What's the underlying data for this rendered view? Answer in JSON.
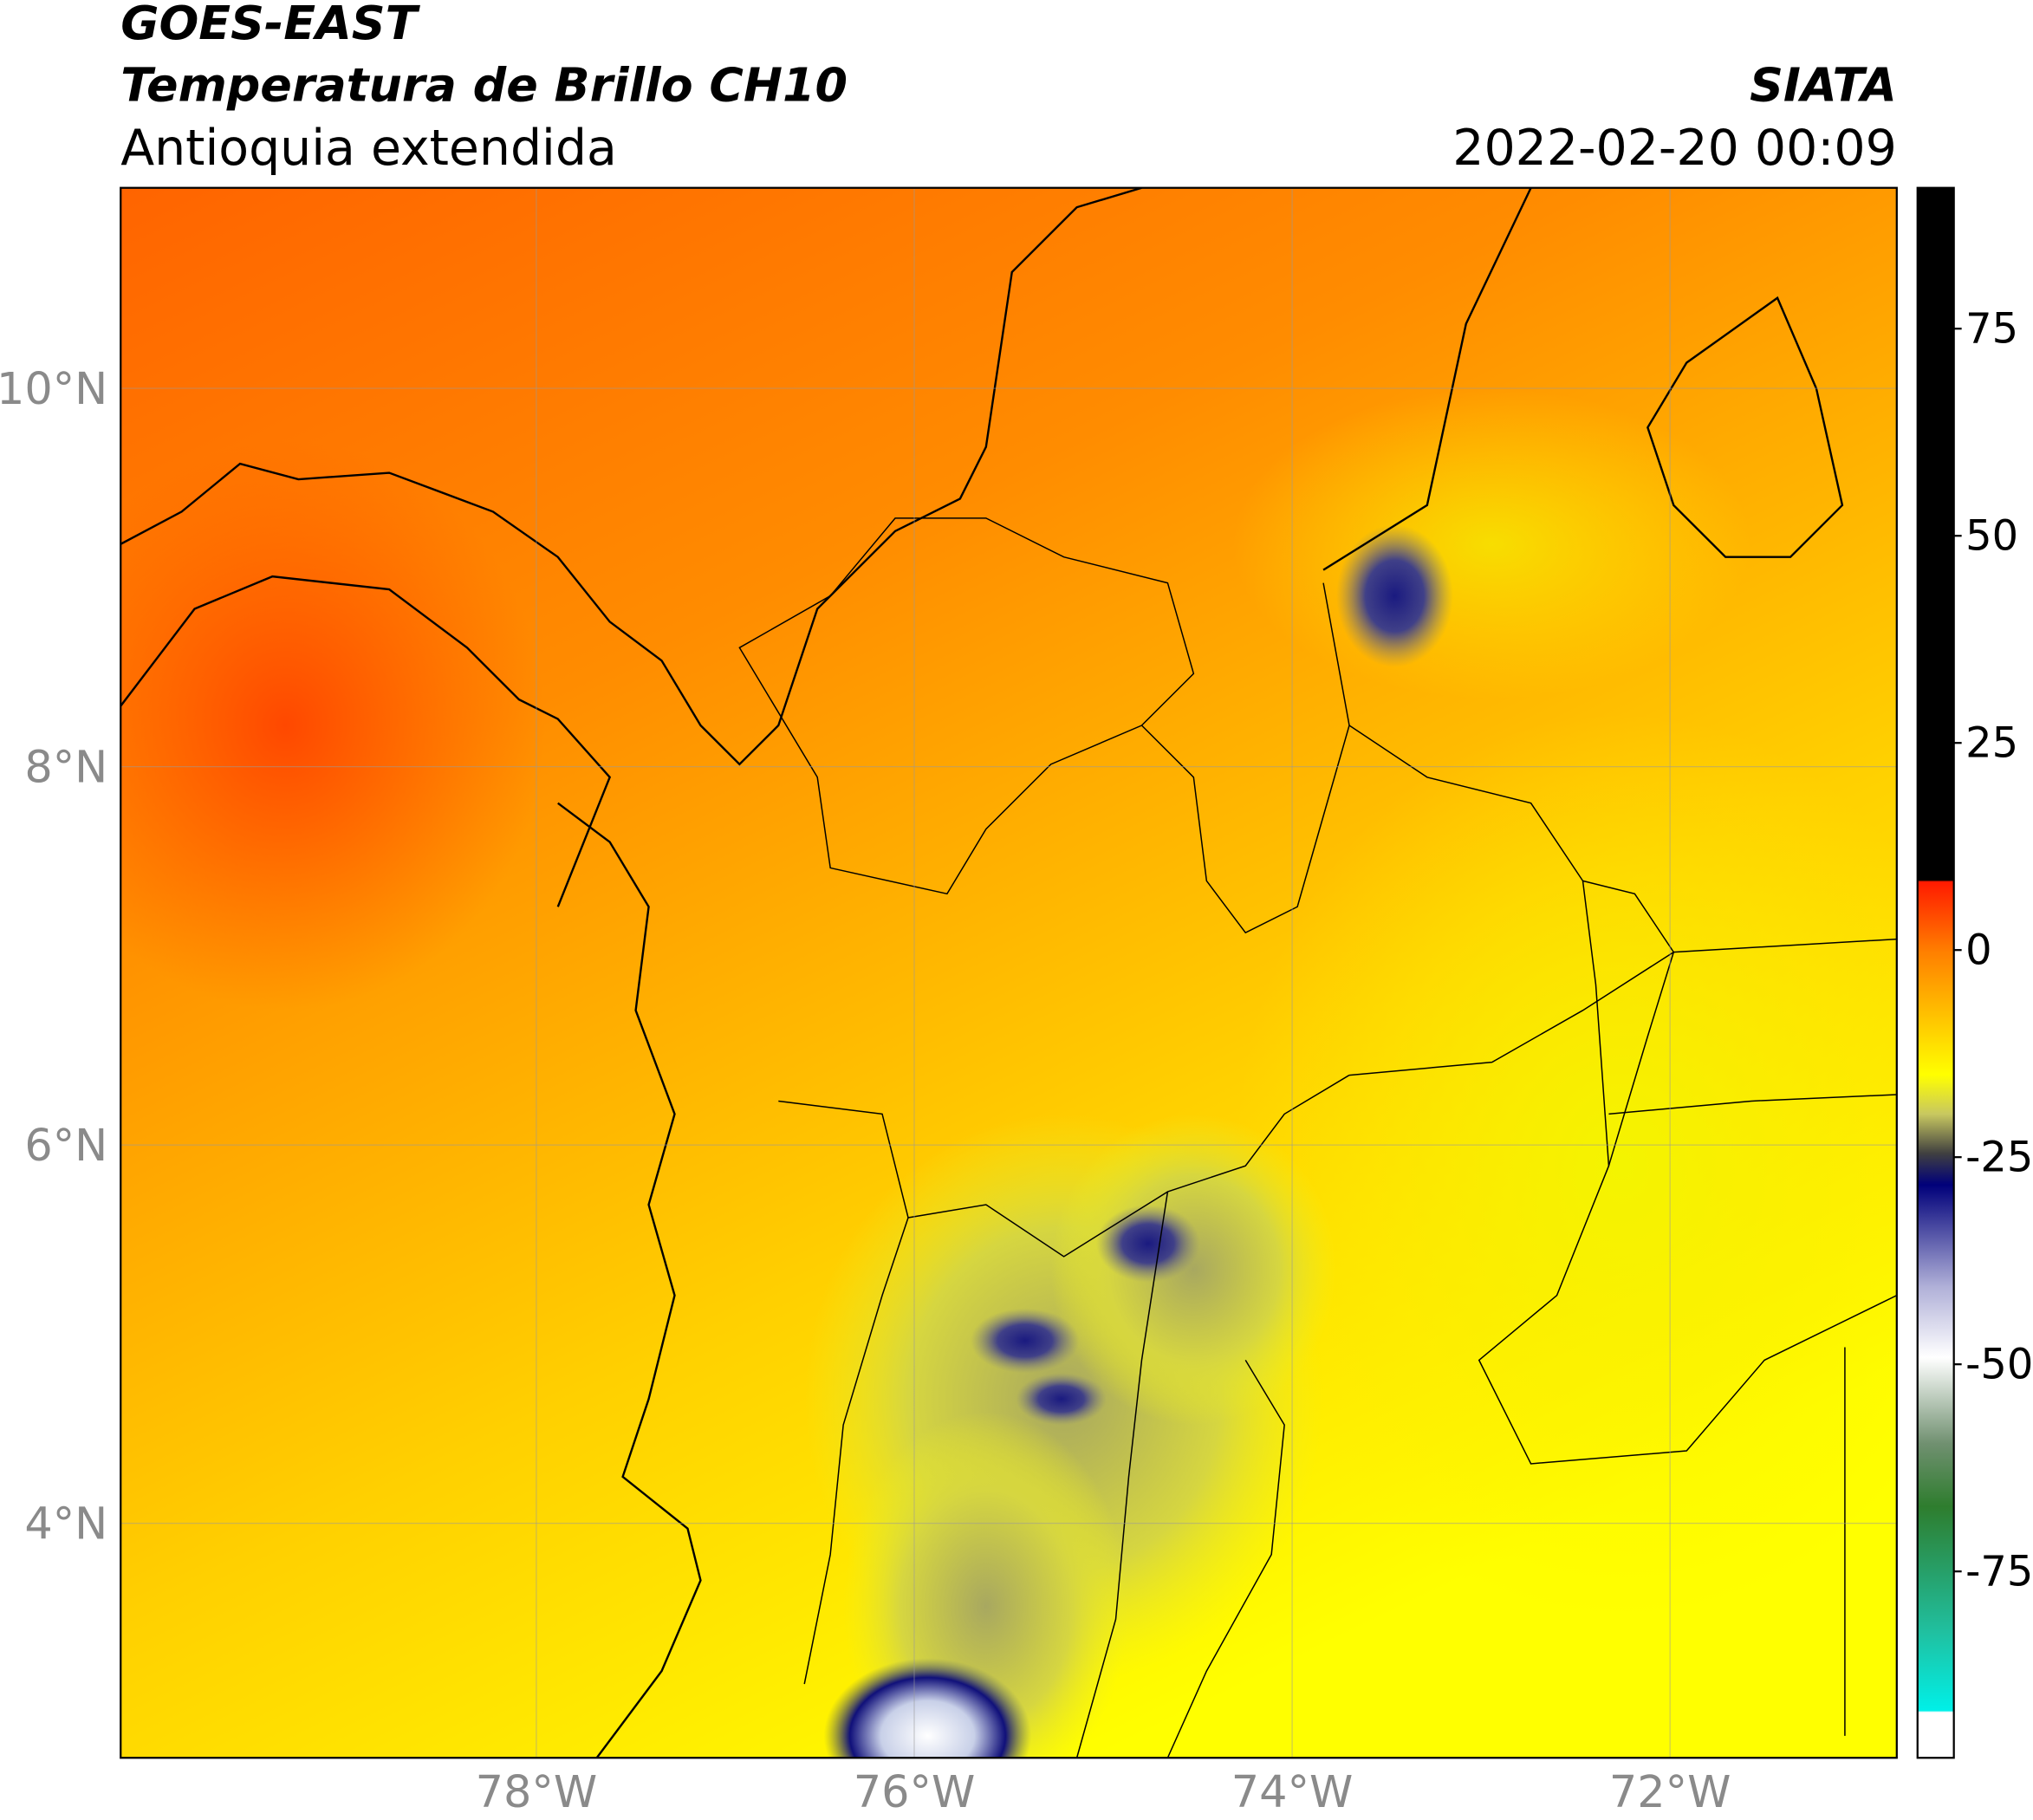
{
  "header": {
    "title_lines": [
      "GOES-EAST",
      "Temperatura de Brillo CH10",
      "Antioquia extendida"
    ],
    "source": "SIATA",
    "datetime": "2022-02-20 00:09"
  },
  "map": {
    "xlim": [
      -80.2,
      -70.8
    ],
    "ylim": [
      2.76,
      11.06
    ],
    "xticks": [
      {
        "value": -78,
        "label": "78°W"
      },
      {
        "value": -76,
        "label": "76°W"
      },
      {
        "value": -74,
        "label": "74°W"
      },
      {
        "value": -72,
        "label": "72°W"
      }
    ],
    "yticks": [
      {
        "value": 10,
        "label": "10°N"
      },
      {
        "value": 8,
        "label": "8°N"
      },
      {
        "value": 6,
        "label": "6°N"
      },
      {
        "value": 4,
        "label": "4°N"
      }
    ],
    "grid": true
  },
  "colorbar": {
    "lim": [
      -97.5,
      92
    ],
    "ticks": [
      75,
      50,
      25,
      0,
      -25,
      -50,
      -75
    ]
  }
}
